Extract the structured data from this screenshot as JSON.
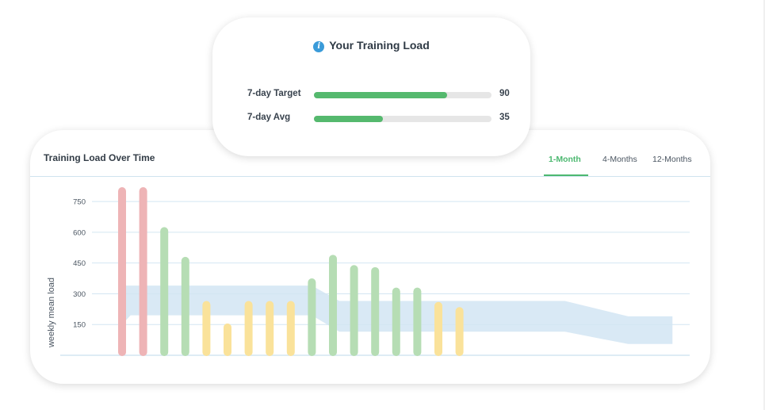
{
  "load_card": {
    "title": "Your Training Load",
    "rows": [
      {
        "label": "7-day Target",
        "value": "90",
        "fill": 0.75
      },
      {
        "label": "7-day Avg",
        "value": "35",
        "fill": 0.39
      }
    ]
  },
  "chart_card": {
    "title": "Training Load Over Time",
    "tabs": [
      {
        "label": "1-Month",
        "active": true
      },
      {
        "label": "4-Months",
        "active": false
      },
      {
        "label": "12-Months",
        "active": false
      }
    ]
  },
  "colors": {
    "accent": "#4cb870",
    "red": "#eeb4b6",
    "green": "#b6ddb4",
    "yellow": "#fae29a",
    "band": "#d9e9f5",
    "grid": "#d3e6f2",
    "info": "#3a9bd9"
  },
  "chart_data": {
    "type": "bar",
    "ylabel": "weekly mean load",
    "yticks": [
      150,
      300,
      450,
      600,
      750
    ],
    "ylim": [
      0,
      820
    ],
    "grid": true,
    "n_days": 27,
    "bars": [
      {
        "day": 0,
        "value": 820,
        "zone": "red"
      },
      {
        "day": 1,
        "value": 820,
        "zone": "red"
      },
      {
        "day": 2,
        "value": 625,
        "zone": "green"
      },
      {
        "day": 3,
        "value": 480,
        "zone": "green"
      },
      {
        "day": 4,
        "value": 265,
        "zone": "yellow"
      },
      {
        "day": 5,
        "value": 155,
        "zone": "yellow"
      },
      {
        "day": 6,
        "value": 265,
        "zone": "yellow"
      },
      {
        "day": 7,
        "value": 265,
        "zone": "yellow"
      },
      {
        "day": 8,
        "value": 265,
        "zone": "yellow"
      },
      {
        "day": 9,
        "value": 375,
        "zone": "green"
      },
      {
        "day": 10,
        "value": 490,
        "zone": "green"
      },
      {
        "day": 11,
        "value": 440,
        "zone": "green"
      },
      {
        "day": 12,
        "value": 430,
        "zone": "green"
      },
      {
        "day": 13,
        "value": 330,
        "zone": "green"
      },
      {
        "day": 14,
        "value": 330,
        "zone": "green"
      },
      {
        "day": 15,
        "value": 260,
        "zone": "yellow"
      },
      {
        "day": 16,
        "value": 235,
        "zone": "yellow"
      }
    ],
    "target_band": [
      {
        "day": 0,
        "low": 150,
        "high": 340
      },
      {
        "day": 0.4,
        "low": 195,
        "high": 340
      },
      {
        "day": 9,
        "low": 195,
        "high": 340
      },
      {
        "day": 10.3,
        "low": 115,
        "high": 265
      },
      {
        "day": 21,
        "low": 115,
        "high": 265
      },
      {
        "day": 24,
        "low": 55,
        "high": 190
      },
      {
        "day": 26.1,
        "low": 55,
        "high": 190
      }
    ]
  }
}
